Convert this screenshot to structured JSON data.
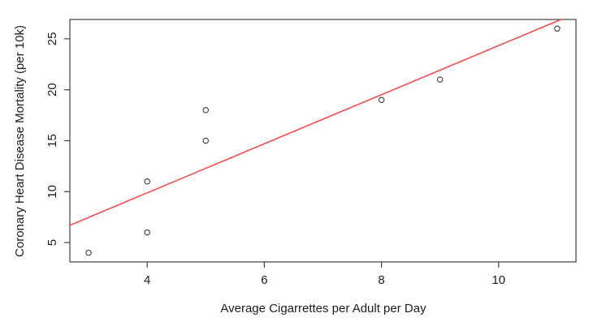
{
  "chart_data": {
    "type": "scatter",
    "title": "",
    "xlabel": "Average Cigarrettes per Adult per Day",
    "ylabel": "Coronary Heart Disease Mortality (per 10k)",
    "points": [
      {
        "x": 3,
        "y": 4
      },
      {
        "x": 4,
        "y": 6
      },
      {
        "x": 4,
        "y": 11
      },
      {
        "x": 5,
        "y": 15
      },
      {
        "x": 5,
        "y": 18
      },
      {
        "x": 8,
        "y": 19
      },
      {
        "x": 9,
        "y": 21
      },
      {
        "x": 11,
        "y": 26
      }
    ],
    "trend_line": {
      "kind": "linear-regression",
      "slope": 2.409,
      "intercept": 0.246,
      "color": "#fb4b4b"
    },
    "xticks": [
      "4",
      "6",
      "8",
      "10"
    ],
    "xtick_values": [
      4,
      6,
      8,
      10
    ],
    "yticks": [
      "5",
      "10",
      "15",
      "20",
      "25"
    ],
    "ytick_values": [
      5,
      10,
      15,
      20,
      25
    ],
    "xlim": [
      2.68,
      11.32
    ],
    "ylim": [
      3.1,
      26.9
    ],
    "grid": false,
    "legend": null,
    "point_style": {
      "shape": "open-circle",
      "color": "#3a3a3a"
    },
    "axis_color": "#414141",
    "text_color": "#1c1c1c",
    "background_color": "#ffffff"
  }
}
